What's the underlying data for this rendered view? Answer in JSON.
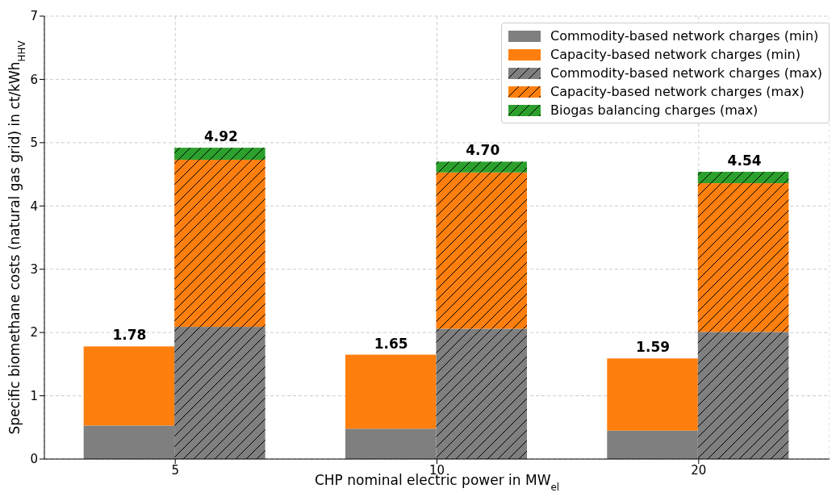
{
  "chart_data": {
    "type": "bar",
    "xlabel": "CHP nominal electric power in MW$_{el}$",
    "ylabel": "Specific biomethane costs (natural gas grid) in ct/kWh$_{HHV}$",
    "categories": [
      "5",
      "10",
      "20"
    ],
    "series": [
      {
        "name": "Commodity-based network charges (min)",
        "color": "#7f7f7f",
        "base": [
          0,
          0,
          0
        ],
        "values": [
          0.53,
          0.48,
          0.45
        ]
      },
      {
        "name": "Capacity-based network charges (min)",
        "color": "#ff7f0e",
        "base": [
          0.53,
          0.48,
          0.45
        ],
        "values": [
          1.25,
          1.17,
          1.14
        ]
      },
      {
        "name": "Commodity-based network charges (max)",
        "color": "#7f7f7f",
        "base": [
          0,
          0,
          0
        ],
        "values": [
          2.09,
          2.06,
          2.01
        ]
      },
      {
        "name": "Capacity-based network charges (max)",
        "color": "#ff7f0e",
        "base": [
          2.09,
          2.06,
          2.01
        ],
        "values": [
          2.64,
          2.47,
          2.35
        ]
      },
      {
        "name": "Biogas balancing charges (max)",
        "color": "#2ca02c",
        "base": [
          4.73,
          4.53,
          4.36
        ],
        "values": [
          0.19,
          0.17,
          0.18
        ]
      }
    ],
    "annotations": [
      "1.78",
      "4.92",
      "1.65",
      "4.70",
      "1.59",
      "4.54"
    ],
    "ylim": [
      0,
      7
    ],
    "yticks": [
      0,
      1,
      2,
      3,
      4,
      5,
      6,
      7
    ],
    "grid": true,
    "legend": "top right"
  }
}
